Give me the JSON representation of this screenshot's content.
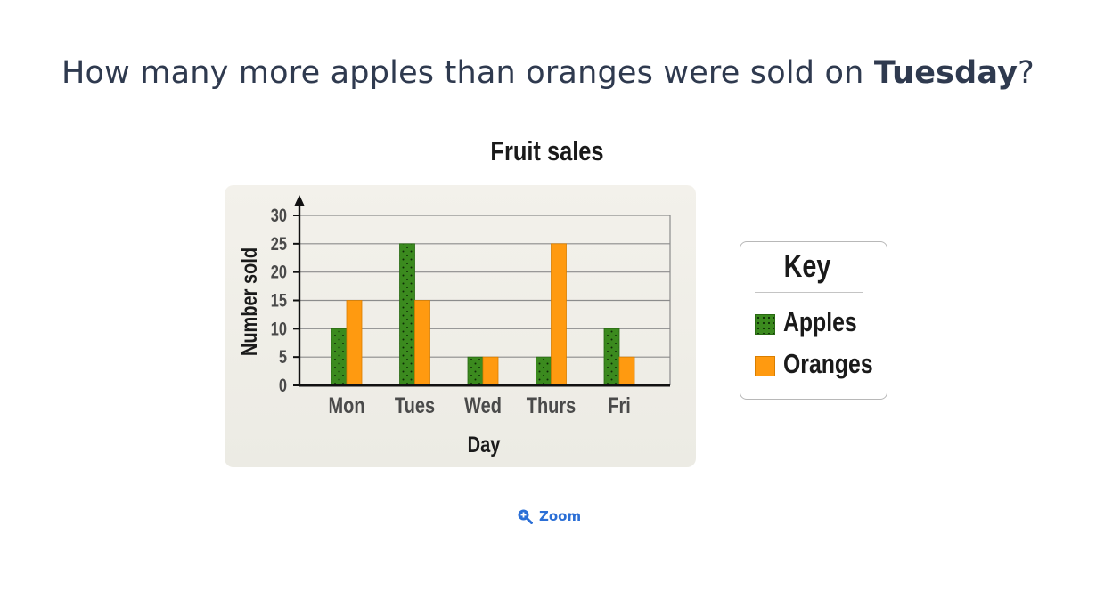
{
  "question": {
    "prefix": "How many more apples than oranges were sold on ",
    "emphasis": "Tuesday",
    "suffix": "?"
  },
  "chart_data": {
    "type": "bar",
    "title": "Fruit sales",
    "xlabel": "Day",
    "ylabel": "Number sold",
    "categories": [
      "Mon",
      "Tues",
      "Wed",
      "Thurs",
      "Fri"
    ],
    "series": [
      {
        "name": "Apples",
        "values": [
          10,
          25,
          5,
          5,
          10
        ],
        "color": "#3b8a1e",
        "pattern": "dotted"
      },
      {
        "name": "Oranges",
        "values": [
          15,
          15,
          5,
          25,
          5
        ],
        "color": "#ff9a10"
      }
    ],
    "ylim": [
      0,
      30
    ],
    "yticks": [
      0,
      5,
      10,
      15,
      20,
      25,
      30
    ],
    "grid": true,
    "legend": {
      "title": "Key",
      "placement": "right"
    }
  },
  "zoom": {
    "label": "Zoom",
    "icon": "zoom-in-icon"
  }
}
